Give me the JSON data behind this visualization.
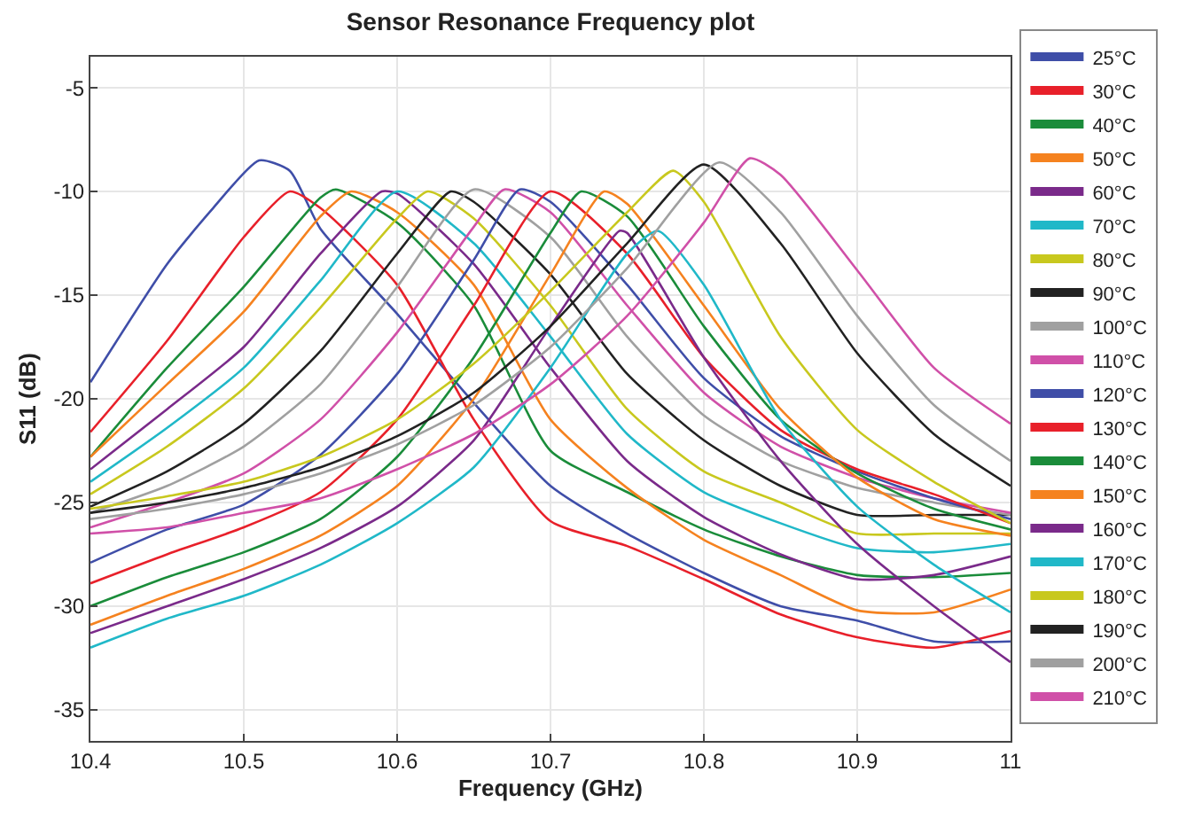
{
  "chart_data": {
    "type": "line",
    "title": "Sensor Resonance Frequency plot",
    "xlabel": "Frequency (GHz)",
    "ylabel": "S11 (dB)",
    "xlim": [
      10.4,
      11
    ],
    "xticks": [
      10.4,
      10.5,
      10.6,
      10.7,
      10.8,
      10.9,
      11
    ],
    "ylim": [
      -36.5,
      -3.5
    ],
    "yticks": [
      -35,
      -30,
      -25,
      -20,
      -15,
      -10,
      -5
    ],
    "grid": true,
    "legend": "right",
    "marker": "none",
    "line_style": "solid",
    "series": [
      {
        "name": "25°C",
        "color": "#3f4ea8",
        "x": [
          10.4,
          10.45,
          10.48,
          10.51,
          10.53,
          10.55,
          10.6,
          10.65,
          10.7,
          10.75,
          10.8,
          10.85,
          10.9,
          10.95,
          11.0
        ],
        "values": [
          -19.2,
          -13.5,
          -10.8,
          -8.5,
          -9.0,
          -11.8,
          -15.9,
          -20.2,
          -24.2,
          -26.5,
          -28.4,
          -30.0,
          -30.7,
          -31.7,
          -31.7
        ]
      },
      {
        "name": "30°C",
        "color": "#e8202a",
        "x": [
          10.4,
          10.45,
          10.5,
          10.53,
          10.55,
          10.6,
          10.65,
          10.7,
          10.75,
          10.8,
          10.85,
          10.9,
          10.95,
          11.0
        ],
        "values": [
          -21.6,
          -17.2,
          -12.2,
          -10.0,
          -10.8,
          -14.5,
          -21.0,
          -25.9,
          -27.1,
          -28.7,
          -30.4,
          -31.5,
          -32.0,
          -31.2
        ]
      },
      {
        "name": "40°C",
        "color": "#1a8c3a",
        "x": [
          10.4,
          10.45,
          10.5,
          10.55,
          10.56,
          10.6,
          10.65,
          10.7,
          10.75,
          10.8,
          10.85,
          10.9,
          10.95,
          11.0
        ],
        "values": [
          -22.8,
          -18.5,
          -14.6,
          -10.3,
          -9.9,
          -11.5,
          -15.5,
          -22.5,
          -24.5,
          -26.3,
          -27.6,
          -28.5,
          -28.6,
          -28.4
        ]
      },
      {
        "name": "50°C",
        "color": "#f5821f",
        "x": [
          10.4,
          10.45,
          10.5,
          10.55,
          10.57,
          10.6,
          10.65,
          10.7,
          10.75,
          10.8,
          10.85,
          10.9,
          10.95,
          11.0
        ],
        "values": [
          -22.8,
          -19.3,
          -15.8,
          -11.2,
          -10.0,
          -11.0,
          -14.5,
          -21.0,
          -24.3,
          -26.8,
          -28.5,
          -30.2,
          -30.3,
          -29.2
        ]
      },
      {
        "name": "60°C",
        "color": "#7a2a8a",
        "x": [
          10.4,
          10.45,
          10.5,
          10.55,
          10.59,
          10.6,
          10.65,
          10.7,
          10.75,
          10.8,
          10.85,
          10.9,
          10.95,
          11.0
        ],
        "values": [
          -23.4,
          -20.5,
          -17.5,
          -13.0,
          -10.0,
          -10.1,
          -13.5,
          -18.5,
          -23.0,
          -25.7,
          -27.5,
          -28.7,
          -28.5,
          -27.6
        ]
      },
      {
        "name": "70°C",
        "color": "#20b8c8",
        "x": [
          10.4,
          10.45,
          10.5,
          10.55,
          10.6,
          10.65,
          10.7,
          10.75,
          10.8,
          10.85,
          10.9,
          10.95,
          11.0
        ],
        "values": [
          -24.0,
          -21.4,
          -18.5,
          -14.3,
          -10.0,
          -12.5,
          -17.0,
          -21.7,
          -24.5,
          -26.0,
          -27.2,
          -27.4,
          -27.0
        ]
      },
      {
        "name": "80°C",
        "color": "#c8c81e",
        "x": [
          10.4,
          10.45,
          10.5,
          10.55,
          10.6,
          10.62,
          10.65,
          10.7,
          10.75,
          10.8,
          10.85,
          10.9,
          10.95,
          11.0
        ],
        "values": [
          -24.6,
          -22.3,
          -19.5,
          -15.6,
          -11.3,
          -10.0,
          -11.3,
          -15.5,
          -20.5,
          -23.5,
          -25.0,
          -26.5,
          -26.5,
          -26.5
        ]
      },
      {
        "name": "90°C",
        "color": "#222222",
        "x": [
          10.4,
          10.45,
          10.5,
          10.55,
          10.6,
          10.635,
          10.65,
          10.7,
          10.75,
          10.8,
          10.85,
          10.9,
          10.95,
          11.0
        ],
        "values": [
          -25.2,
          -23.5,
          -21.2,
          -17.7,
          -13.0,
          -10.0,
          -10.5,
          -14.0,
          -18.8,
          -22.0,
          -24.2,
          -25.6,
          -25.6,
          -25.6
        ]
      },
      {
        "name": "100°C",
        "color": "#a0a0a0",
        "x": [
          10.4,
          10.45,
          10.5,
          10.55,
          10.6,
          10.65,
          10.7,
          10.75,
          10.8,
          10.85,
          10.9,
          10.95,
          11.0
        ],
        "values": [
          -25.5,
          -24.2,
          -22.3,
          -19.3,
          -14.6,
          -9.9,
          -12.2,
          -17.0,
          -20.8,
          -23.0,
          -24.3,
          -25.0,
          -25.6
        ]
      },
      {
        "name": "110°C",
        "color": "#d050a8",
        "x": [
          10.4,
          10.45,
          10.5,
          10.55,
          10.6,
          10.65,
          10.67,
          10.7,
          10.75,
          10.8,
          10.85,
          10.9,
          10.95,
          11.0
        ],
        "values": [
          -26.2,
          -25.0,
          -23.6,
          -21.0,
          -16.8,
          -11.7,
          -9.9,
          -11.0,
          -15.5,
          -19.7,
          -22.3,
          -23.8,
          -24.8,
          -25.5
        ]
      },
      {
        "name": "120°C",
        "color": "#3f4ea8",
        "x": [
          10.4,
          10.45,
          10.5,
          10.55,
          10.6,
          10.65,
          10.68,
          10.7,
          10.75,
          10.8,
          10.85,
          10.9,
          10.95,
          11.0
        ],
        "values": [
          -27.9,
          -26.3,
          -25.1,
          -22.7,
          -18.8,
          -13.3,
          -9.9,
          -10.5,
          -14.5,
          -19.0,
          -21.8,
          -23.5,
          -24.8,
          -25.8
        ]
      },
      {
        "name": "130°C",
        "color": "#e8202a",
        "x": [
          10.4,
          10.45,
          10.5,
          10.55,
          10.6,
          10.65,
          10.7,
          10.75,
          10.8,
          10.85,
          10.9,
          10.95,
          11.0
        ],
        "values": [
          -28.9,
          -27.5,
          -26.2,
          -24.5,
          -21.0,
          -15.5,
          -10.0,
          -13.0,
          -18.0,
          -21.5,
          -23.4,
          -24.6,
          -26.0
        ]
      },
      {
        "name": "140°C",
        "color": "#1a8c3a",
        "x": [
          10.4,
          10.45,
          10.5,
          10.55,
          10.6,
          10.65,
          10.7,
          10.72,
          10.75,
          10.8,
          10.85,
          10.9,
          10.95,
          11.0
        ],
        "values": [
          -30.0,
          -28.6,
          -27.4,
          -25.8,
          -22.8,
          -18.0,
          -12.0,
          -10.0,
          -11.2,
          -16.5,
          -21.0,
          -23.6,
          -25.3,
          -26.3
        ]
      },
      {
        "name": "150°C",
        "color": "#f5821f",
        "x": [
          10.4,
          10.45,
          10.5,
          10.55,
          10.6,
          10.65,
          10.7,
          10.735,
          10.75,
          10.8,
          10.85,
          10.9,
          10.95,
          11.0
        ],
        "values": [
          -30.9,
          -29.5,
          -28.2,
          -26.6,
          -24.2,
          -20.0,
          -14.0,
          -10.0,
          -10.6,
          -15.5,
          -20.5,
          -23.8,
          -25.8,
          -26.6
        ]
      },
      {
        "name": "160°C",
        "color": "#7a2a8a",
        "x": [
          10.4,
          10.45,
          10.5,
          10.55,
          10.6,
          10.65,
          10.7,
          10.745,
          10.75,
          10.8,
          10.85,
          10.9,
          10.95,
          11.0
        ],
        "values": [
          -31.3,
          -30.0,
          -28.7,
          -27.2,
          -25.2,
          -22.0,
          -16.5,
          -11.9,
          -12.0,
          -18.0,
          -23.0,
          -27.0,
          -30.0,
          -32.7
        ]
      },
      {
        "name": "170°C",
        "color": "#20b8c8",
        "x": [
          10.4,
          10.45,
          10.5,
          10.55,
          10.6,
          10.65,
          10.7,
          10.75,
          10.77,
          10.8,
          10.85,
          10.9,
          10.95,
          11.0
        ],
        "values": [
          -32.0,
          -30.6,
          -29.5,
          -28.0,
          -26.0,
          -23.3,
          -18.5,
          -13.0,
          -11.9,
          -14.5,
          -21.0,
          -25.2,
          -28.0,
          -30.3
        ]
      },
      {
        "name": "180°C",
        "color": "#c8c81e",
        "x": [
          10.4,
          10.45,
          10.5,
          10.55,
          10.6,
          10.65,
          10.7,
          10.75,
          10.78,
          10.8,
          10.85,
          10.9,
          10.95,
          11.0
        ],
        "values": [
          -25.3,
          -24.7,
          -24.0,
          -22.8,
          -21.0,
          -18.3,
          -14.8,
          -11.0,
          -9.0,
          -10.5,
          -17.0,
          -21.5,
          -24.0,
          -26.0
        ]
      },
      {
        "name": "190°C",
        "color": "#222222",
        "x": [
          10.4,
          10.45,
          10.5,
          10.55,
          10.6,
          10.65,
          10.7,
          10.75,
          10.8,
          10.85,
          10.9,
          10.95,
          11.0
        ],
        "values": [
          -25.5,
          -25.0,
          -24.3,
          -23.3,
          -21.8,
          -19.7,
          -16.5,
          -12.5,
          -8.7,
          -12.5,
          -17.8,
          -21.7,
          -24.2
        ]
      },
      {
        "name": "200°C",
        "color": "#a0a0a0",
        "x": [
          10.4,
          10.45,
          10.5,
          10.55,
          10.6,
          10.65,
          10.7,
          10.75,
          10.81,
          10.85,
          10.9,
          10.95,
          11.0
        ],
        "values": [
          -25.8,
          -25.3,
          -24.6,
          -23.6,
          -22.2,
          -20.3,
          -17.5,
          -13.7,
          -8.6,
          -11.0,
          -16.0,
          -20.3,
          -23.0
        ]
      },
      {
        "name": "210°C",
        "color": "#d050a8",
        "x": [
          10.4,
          10.45,
          10.5,
          10.55,
          10.6,
          10.65,
          10.7,
          10.75,
          10.8,
          10.83,
          10.85,
          10.9,
          10.95,
          11.0
        ],
        "values": [
          -26.5,
          -26.2,
          -25.5,
          -24.8,
          -23.4,
          -21.7,
          -19.3,
          -16.0,
          -11.5,
          -8.4,
          -9.2,
          -13.8,
          -18.5,
          -21.2
        ]
      }
    ]
  }
}
